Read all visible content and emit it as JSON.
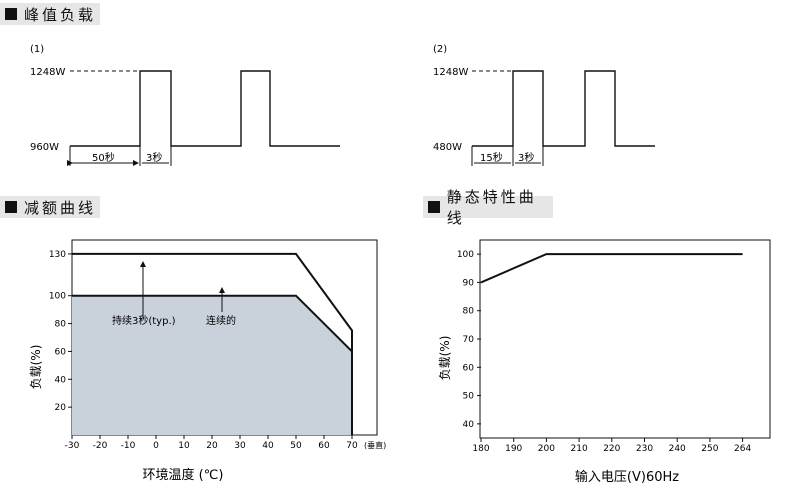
{
  "sections": {
    "peak": "峰值负载",
    "derating": "减额曲线",
    "static": "静态特性曲线"
  },
  "peak_diagrams": [
    {
      "label": "(1)",
      "high_label": "1248W",
      "low_label": "960W",
      "interval_label": "50秒",
      "pulse_label": "3秒"
    },
    {
      "label": "(2)",
      "high_label": "1248W",
      "low_label": "480W",
      "interval_label": "15秒",
      "pulse_label": "3秒"
    }
  ],
  "chart_data": [
    {
      "type": "line",
      "title": "",
      "xlabel": "环境温度 (℃)",
      "ylabel": "负载(%)",
      "x_unit_label": "(垂直)",
      "xlim": [
        -30,
        70
      ],
      "ylim": [
        0,
        140
      ],
      "x_ticks": [
        -30,
        -20,
        -10,
        0,
        10,
        20,
        30,
        40,
        50,
        60,
        70
      ],
      "y_ticks": [
        20,
        40,
        60,
        80,
        100,
        130
      ],
      "grid": false,
      "series": [
        {
          "name": "持续3秒(typ.)",
          "points": [
            [
              -30,
              130
            ],
            [
              50,
              130
            ],
            [
              70,
              75
            ],
            [
              70,
              0
            ]
          ]
        },
        {
          "name": "连续的",
          "points": [
            [
              -30,
              100
            ],
            [
              50,
              100
            ],
            [
              70,
              60
            ],
            [
              70,
              0
            ]
          ],
          "fill": "#c9d1db"
        }
      ]
    },
    {
      "type": "line",
      "title": "",
      "xlabel": "输入电压(V)60Hz",
      "ylabel": "负载(%)",
      "x_ticks": [
        180,
        190,
        200,
        210,
        220,
        230,
        240,
        250,
        264
      ],
      "y_ticks": [
        40,
        50,
        60,
        70,
        80,
        90,
        100
      ],
      "ylim": [
        35,
        105
      ],
      "grid": false,
      "series": [
        {
          "points": [
            [
              180,
              90
            ],
            [
              200,
              100
            ],
            [
              264,
              100
            ]
          ]
        }
      ]
    }
  ]
}
